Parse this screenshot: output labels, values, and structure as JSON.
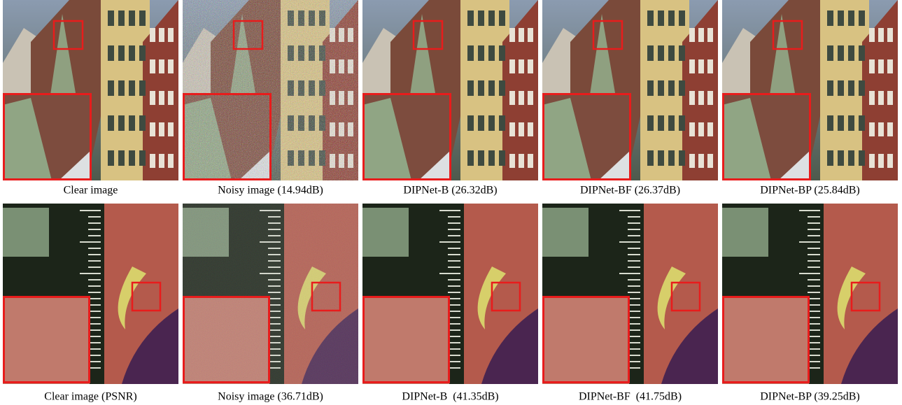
{
  "figure": {
    "rows": [
      {
        "captions": [
          "Clear image",
          "Noisy image (14.94dB)",
          "DIPNet-B (26.32dB)",
          "DIPNet-BF (26.37dB)",
          "DIPNet-BP (25.84dB)"
        ]
      },
      {
        "captions": [
          "Clear image (PSNR)",
          "Noisy image (36.71dB)",
          "DIPNet-B  (41.35dB)",
          "DIPNet-BF  (41.75dB)",
          "DIPNet-BP (39.25dB)"
        ]
      }
    ]
  }
}
